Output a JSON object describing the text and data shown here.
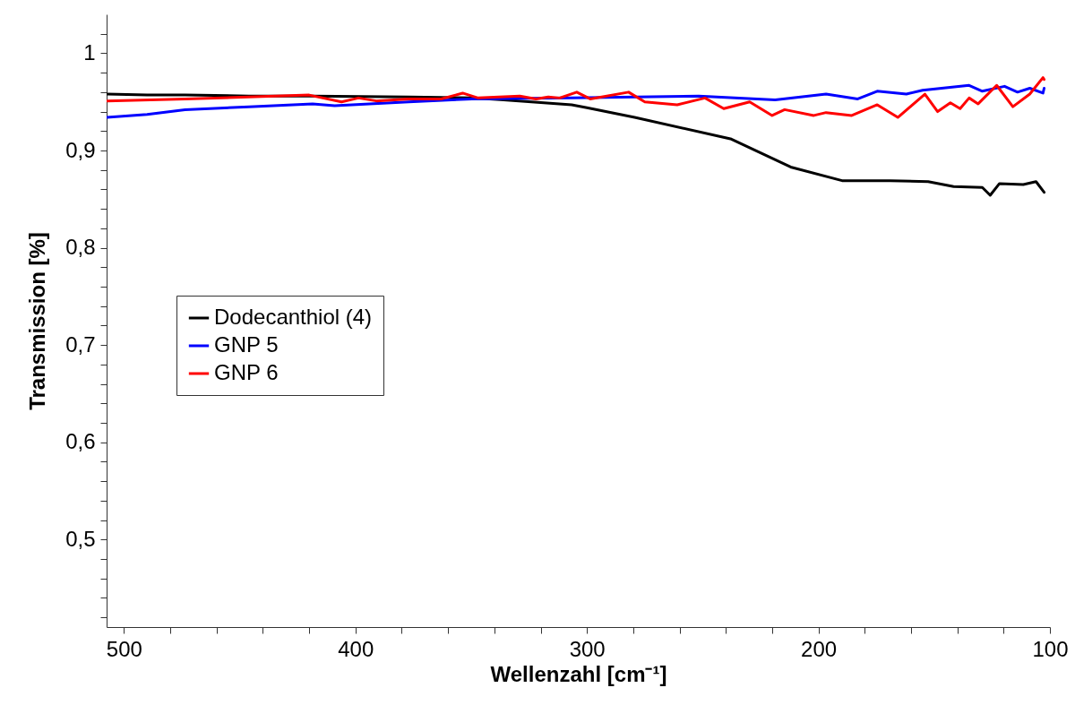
{
  "chart_data": {
    "type": "line",
    "xlabel": "Wellenzahl [cm⁻¹]",
    "ylabel": "Transmission [%]",
    "xlim": [
      507.5,
      100
    ],
    "ylim": [
      0.41,
      1.04
    ],
    "xticks": [
      500,
      {
        "value": 480,
        "label": null
      },
      {
        "value": 460,
        "label": null
      },
      {
        "value": 440,
        "label": null
      },
      {
        "value": 420,
        "label": null
      },
      400,
      {
        "value": 380,
        "label": null
      },
      {
        "value": 360,
        "label": null
      },
      {
        "value": 340,
        "label": null
      },
      {
        "value": 320,
        "label": null
      },
      300,
      {
        "value": 280,
        "label": null
      },
      {
        "value": 260,
        "label": null
      },
      {
        "value": 240,
        "label": null
      },
      {
        "value": 220,
        "label": null
      },
      200,
      {
        "value": 180,
        "label": null
      },
      {
        "value": 160,
        "label": null
      },
      {
        "value": 140,
        "label": null
      },
      {
        "value": 120,
        "label": null
      },
      100
    ],
    "yticks": [
      {
        "value": 0.42,
        "label": null
      },
      {
        "value": 0.44,
        "label": null
      },
      {
        "value": 0.46,
        "label": null
      },
      {
        "value": 0.48,
        "label": null
      },
      {
        "value": 0.5,
        "label": "0,5"
      },
      {
        "value": 0.52,
        "label": null
      },
      {
        "value": 0.54,
        "label": null
      },
      {
        "value": 0.56,
        "label": null
      },
      {
        "value": 0.58,
        "label": null
      },
      {
        "value": 0.6,
        "label": "0,6"
      },
      {
        "value": 0.62,
        "label": null
      },
      {
        "value": 0.64,
        "label": null
      },
      {
        "value": 0.66,
        "label": null
      },
      {
        "value": 0.68,
        "label": null
      },
      {
        "value": 0.7,
        "label": "0,7"
      },
      {
        "value": 0.72,
        "label": null
      },
      {
        "value": 0.74,
        "label": null
      },
      {
        "value": 0.76,
        "label": null
      },
      {
        "value": 0.78,
        "label": null
      },
      {
        "value": 0.8,
        "label": "0,8"
      },
      {
        "value": 0.82,
        "label": null
      },
      {
        "value": 0.84,
        "label": null
      },
      {
        "value": 0.86,
        "label": null
      },
      {
        "value": 0.88,
        "label": null
      },
      {
        "value": 0.9,
        "label": "0,9"
      },
      {
        "value": 0.92,
        "label": null
      },
      {
        "value": 0.94,
        "label": null
      },
      {
        "value": 0.96,
        "label": null
      },
      {
        "value": 0.98,
        "label": null
      },
      1,
      {
        "value": 1.02,
        "label": null
      }
    ],
    "grid": false,
    "legend": "left",
    "marker": "none",
    "line_style": "solid",
    "series": [
      {
        "name": "Dodecanthiol (4)",
        "color": "#000000",
        "x": [
          507.3,
          490,
          473.6,
          446,
          418.5,
          377,
          349.7,
          336,
          306.6,
          300,
          279.4,
          238,
          212,
          189.8,
          169,
          152.6,
          141.6,
          129.2,
          125.8,
          121.8,
          111.5,
          106,
          102.5
        ],
        "values": [
          0.958,
          0.957,
          0.957,
          0.956,
          0.956,
          0.955,
          0.954,
          0.952,
          0.947,
          0.944,
          0.934,
          0.912,
          0.883,
          0.869,
          0.869,
          0.868,
          0.863,
          0.862,
          0.854,
          0.866,
          0.865,
          0.868,
          0.857
        ]
      },
      {
        "name": "GNP 5",
        "color": "#0000ff",
        "x": [
          507.3,
          490,
          473.6,
          446,
          418.5,
          409,
          377,
          349.7,
          306.6,
          251.7,
          218.7,
          196.7,
          183,
          174.6,
          162,
          155,
          134.9,
          129.2,
          119.6,
          114,
          108.7,
          103,
          102.5
        ],
        "values": [
          0.934,
          0.937,
          0.942,
          0.945,
          0.948,
          0.946,
          0.95,
          0.953,
          0.954,
          0.956,
          0.952,
          0.958,
          0.953,
          0.961,
          0.958,
          0.962,
          0.967,
          0.961,
          0.966,
          0.96,
          0.964,
          0.959,
          0.964
        ]
      },
      {
        "name": "GNP 6",
        "color": "#ff0000",
        "x": [
          507.3,
          473.6,
          420,
          406,
          398.7,
          391,
          377,
          363,
          353.7,
          347,
          329,
          322,
          316.7,
          311.8,
          304.4,
          298.6,
          282,
          275,
          261,
          249,
          240.9,
          229.7,
          220,
          214.6,
          202,
          196.7,
          185.6,
          174.6,
          165.7,
          154,
          148.5,
          143,
          138.8,
          134.9,
          131,
          123,
          116,
          108.7,
          103,
          102.5
        ],
        "values": [
          0.951,
          0.953,
          0.957,
          0.95,
          0.954,
          0.951,
          0.953,
          0.953,
          0.959,
          0.954,
          0.956,
          0.953,
          0.955,
          0.954,
          0.96,
          0.953,
          0.96,
          0.95,
          0.947,
          0.954,
          0.943,
          0.95,
          0.936,
          0.942,
          0.936,
          0.939,
          0.936,
          0.947,
          0.934,
          0.958,
          0.94,
          0.949,
          0.943,
          0.954,
          0.948,
          0.967,
          0.945,
          0.958,
          0.975,
          0.973
        ]
      }
    ]
  }
}
